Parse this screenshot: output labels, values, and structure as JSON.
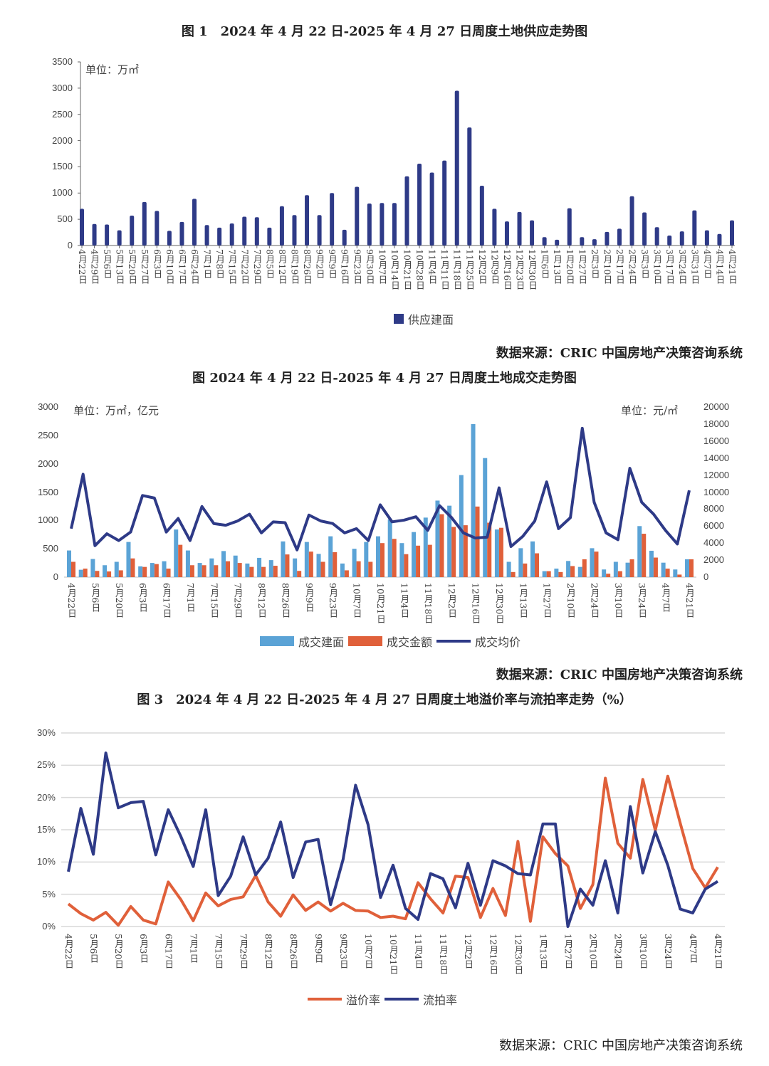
{
  "colors": {
    "navy": "#2e3a87",
    "light_blue": "#5ba3d6",
    "orange": "#e0603a",
    "grid": "#d9d9d9"
  },
  "charts": {
    "c1": {
      "title": "图 1　2024 年 4 月 22 日-2025 年 4 月 27 日周度土地供应走势图",
      "unit": "单位：万㎡",
      "source": "数据来源：CRIC 中国房地产决策咨询系统"
    },
    "c2": {
      "title": "图 2024 年 4 月 22 日-2025 年 4 月 27 日周度土地成交走势图",
      "unit_left": "单位：万㎡，亿元",
      "unit_right": "单位：元/㎡",
      "source": "数据来源：CRIC 中国房地产决策咨询系统"
    },
    "c3": {
      "title": "图 3　2024 年 4 月 22 日-2025 年 4 月 27 日周度土地溢价率与流拍率走势（%）",
      "source": "数据来源：CRIC 中国房地产决策咨询系统"
    }
  },
  "chart_data": [
    {
      "type": "bar",
      "title": "图 1　2024 年 4 月 22 日-2025 年 4 月 27 日周度土地供应走势图",
      "ylabel": "单位：万㎡",
      "ylim": [
        0,
        3500
      ],
      "yticks": [
        "0",
        "500",
        "1000",
        "1500",
        "2000",
        "2500",
        "3000",
        "3500"
      ],
      "grid": false,
      "legend": "bottom",
      "categories": [
        "4月22日",
        "4月29日",
        "5月6日",
        "5月13日",
        "5月20日",
        "5月27日",
        "6月3日",
        "6月10日",
        "6月17日",
        "6月24日",
        "7月1日",
        "7月8日",
        "7月15日",
        "7月22日",
        "7月29日",
        "8月5日",
        "8月12日",
        "8月19日",
        "8月26日",
        "9月2日",
        "9月9日",
        "9月16日",
        "9月23日",
        "9月30日",
        "10月7日",
        "10月14日",
        "10月21日",
        "10月28日",
        "11月4日",
        "11月11日",
        "11月18日",
        "11月25日",
        "12月2日",
        "12月9日",
        "12月16日",
        "12月23日",
        "12月30日",
        "1月6日",
        "1月13日",
        "1月20日",
        "1月27日",
        "2月3日",
        "2月10日",
        "2月17日",
        "2月24日",
        "3月3日",
        "3月10日",
        "3月17日",
        "3月24日",
        "3月31日",
        "4月7日",
        "4月14日",
        "4月21日"
      ],
      "series": [
        {
          "name": "供应建面",
          "color": "#2e3a87",
          "values": [
            700,
            410,
            400,
            290,
            570,
            830,
            660,
            280,
            450,
            890,
            390,
            340,
            420,
            550,
            540,
            340,
            750,
            580,
            960,
            580,
            1000,
            300,
            1120,
            800,
            810,
            810,
            1320,
            1560,
            1390,
            1620,
            2950,
            2250,
            1140,
            700,
            460,
            640,
            480,
            160,
            110,
            710,
            160,
            120,
            260,
            320,
            940,
            630,
            350,
            190,
            270,
            670,
            290,
            220,
            480
          ]
        }
      ]
    },
    {
      "type": "bar+line",
      "title": "图 2024 年 4 月 22 日-2025 年 4 月 27 日周度土地成交走势图",
      "ylabel": "单位：万㎡，亿元",
      "y2label": "单位：元/㎡",
      "ylim": [
        0,
        3000
      ],
      "y2lim": [
        0,
        20000
      ],
      "yticks": [
        "0",
        "500",
        "1000",
        "1500",
        "2000",
        "2500",
        "3000"
      ],
      "y2ticks": [
        "0",
        "2000",
        "4000",
        "6000",
        "8000",
        "10000",
        "12000",
        "14000",
        "16000",
        "18000",
        "20000"
      ],
      "grid": false,
      "legend": "bottom",
      "categories": [
        "4月22日",
        "4月29日",
        "5月6日",
        "5月13日",
        "5月20日",
        "5月27日",
        "6月3日",
        "6月10日",
        "6月17日",
        "6月24日",
        "7月1日",
        "7月8日",
        "7月15日",
        "7月22日",
        "7月29日",
        "8月5日",
        "8月12日",
        "8月19日",
        "8月26日",
        "9月2日",
        "9月9日",
        "9月16日",
        "9月23日",
        "9月30日",
        "10月7日",
        "10月14日",
        "10月21日",
        "10月28日",
        "11月4日",
        "11月11日",
        "11月18日",
        "11月25日",
        "12月2日",
        "12月9日",
        "12月16日",
        "12月23日",
        "12月30日",
        "1月6日",
        "1月13日",
        "1月20日",
        "1月27日",
        "2月3日",
        "2月10日",
        "2月17日",
        "2月24日",
        "3月3日",
        "3月10日",
        "3月17日",
        "3月24日",
        "3月31日",
        "4月7日",
        "4月14日",
        "4月21日"
      ],
      "x_tick_labels": [
        "4月22日",
        "5月6日",
        "5月20日",
        "6月3日",
        "6月17日",
        "7月1日",
        "7月15日",
        "7月29日",
        "8月12日",
        "8月26日",
        "9月9日",
        "9月23日",
        "10月7日",
        "10月21日",
        "11月4日",
        "11月18日",
        "12月2日",
        "12月16日",
        "12月30日",
        "1月13日",
        "1月27日",
        "2月10日",
        "2月24日",
        "3月10日",
        "3月24日",
        "4月7日",
        "4月21日"
      ],
      "series": [
        {
          "name": "成交建面",
          "type": "bar",
          "axis": "left",
          "color": "#5ba3d6",
          "values": [
            470,
            130,
            320,
            210,
            270,
            620,
            190,
            250,
            280,
            840,
            470,
            250,
            330,
            460,
            380,
            240,
            340,
            300,
            630,
            330,
            620,
            410,
            720,
            240,
            500,
            620,
            720,
            1020,
            600,
            795,
            1050,
            1350,
            1260,
            1800,
            2700,
            2100,
            840,
            270,
            510,
            630,
            105,
            150,
            285,
            180,
            510,
            135,
            270,
            255,
            900,
            465,
            255,
            135,
            315
          ]
        },
        {
          "name": "成交金额",
          "type": "bar",
          "axis": "left",
          "color": "#e0603a",
          "values": [
            270,
            150,
            110,
            100,
            120,
            330,
            180,
            230,
            150,
            570,
            210,
            210,
            210,
            280,
            250,
            180,
            180,
            200,
            400,
            110,
            450,
            270,
            440,
            120,
            280,
            270,
            600,
            675,
            405,
            555,
            570,
            1110,
            885,
            915,
            1245,
            960,
            870,
            90,
            240,
            420,
            105,
            90,
            195,
            315,
            450,
            60,
            105,
            315,
            765,
            345,
            150,
            45,
            315
          ]
        },
        {
          "name": "成交均价",
          "type": "line",
          "axis": "right",
          "color": "#2e3a87",
          "values": [
            5700,
            12100,
            3700,
            5100,
            4300,
            5300,
            9600,
            9300,
            5300,
            6900,
            4300,
            8300,
            6300,
            6100,
            6600,
            7400,
            5200,
            6500,
            6400,
            3200,
            7300,
            6600,
            6300,
            5200,
            5700,
            4300,
            8500,
            6500,
            6700,
            7100,
            5500,
            8400,
            7000,
            5200,
            4600,
            4700,
            10500,
            3600,
            4800,
            6600,
            11200,
            5700,
            7000,
            17500,
            8800,
            5200,
            4400,
            12800,
            8800,
            7400,
            5500,
            3900,
            10200
          ]
        }
      ]
    },
    {
      "type": "line",
      "title": "图 3　2024 年 4 月 22 日-2025 年 4 月 27 日周度土地溢价率与流拍率走势（%）",
      "ylim": [
        0,
        30
      ],
      "yticks": [
        "0%",
        "5%",
        "10%",
        "15%",
        "20%",
        "25%",
        "30%"
      ],
      "grid": true,
      "legend": "bottom",
      "categories": [
        "4月22日",
        "4月29日",
        "5月6日",
        "5月13日",
        "5月20日",
        "5月27日",
        "6月3日",
        "6月10日",
        "6月17日",
        "6月24日",
        "7月1日",
        "7月8日",
        "7月15日",
        "7月22日",
        "7月29日",
        "8月5日",
        "8月12日",
        "8月19日",
        "8月26日",
        "9月2日",
        "9月9日",
        "9月16日",
        "9月23日",
        "9月30日",
        "10月7日",
        "10月14日",
        "10月21日",
        "10月28日",
        "11月4日",
        "11月11日",
        "11月18日",
        "11月25日",
        "12月2日",
        "12月9日",
        "12月16日",
        "12月23日",
        "12月30日",
        "1月6日",
        "1月13日",
        "1月20日",
        "1月27日",
        "2月3日",
        "2月10日",
        "2月17日",
        "2月24日",
        "3月3日",
        "3月10日",
        "3月17日",
        "3月24日",
        "3月31日",
        "4月7日",
        "4月14日",
        "4月21日"
      ],
      "x_tick_labels": [
        "4月22日",
        "5月6日",
        "5月20日",
        "6月3日",
        "6月17日",
        "7月1日",
        "7月15日",
        "7月29日",
        "8月12日",
        "8月26日",
        "9月9日",
        "9月23日",
        "10月7日",
        "10月21日",
        "11月4日",
        "11月18日",
        "12月2日",
        "12月16日",
        "12月30日",
        "1月13日",
        "1月27日",
        "2月10日",
        "2月24日",
        "3月10日",
        "3月24日",
        "4月7日",
        "4月21日"
      ],
      "series": [
        {
          "name": "溢价率",
          "color": "#e0603a",
          "values": [
            3.5,
            2.0,
            1.0,
            2.2,
            0.2,
            3.1,
            1.0,
            0.4,
            6.9,
            4.2,
            0.9,
            5.2,
            3.2,
            4.2,
            4.6,
            7.9,
            3.8,
            1.6,
            4.9,
            2.5,
            3.8,
            2.4,
            3.6,
            2.5,
            2.4,
            1.4,
            1.6,
            1.2,
            6.8,
            4.3,
            2.1,
            7.8,
            7.6,
            1.4,
            5.9,
            1.7,
            13.2,
            0.8,
            13.9,
            11.3,
            9.4,
            2.8,
            6.5,
            23.0,
            12.9,
            10.6,
            22.8,
            14.9,
            23.3,
            16.0,
            9.0,
            6.0,
            9.2
          ]
        },
        {
          "name": "流拍率",
          "color": "#2e3a87",
          "values": [
            8.5,
            18.3,
            11.2,
            26.9,
            18.4,
            19.2,
            19.4,
            11.1,
            18.1,
            14.0,
            9.3,
            18.1,
            4.8,
            7.8,
            13.9,
            8.0,
            10.6,
            16.2,
            7.6,
            13.1,
            13.5,
            3.4,
            10.4,
            21.9,
            15.8,
            4.5,
            9.5,
            2.8,
            1.1,
            8.2,
            7.4,
            2.9,
            9.8,
            3.3,
            10.2,
            9.4,
            8.2,
            8.0,
            15.9,
            15.9,
            0,
            5.8,
            3.3,
            10.2,
            2.1,
            18.6,
            8.3,
            14.7,
            9.5,
            2.7,
            2.1,
            5.8,
            7.0
          ]
        }
      ]
    }
  ]
}
